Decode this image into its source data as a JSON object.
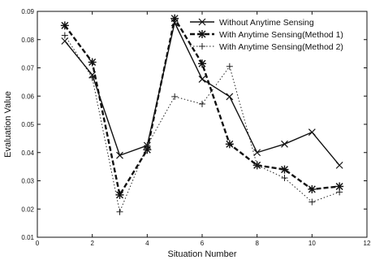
{
  "chart_data": {
    "type": "line",
    "title": "",
    "xlabel": "Situation Number",
    "ylabel": "Evaluation Value",
    "xlim": [
      0,
      12
    ],
    "ylim": [
      0.01,
      0.09
    ],
    "x_ticks": [
      0,
      2,
      4,
      6,
      8,
      10,
      12
    ],
    "y_ticks": [
      0.01,
      0.02,
      0.03,
      0.04,
      0.05,
      0.06,
      0.07,
      0.08,
      0.09
    ],
    "x_tick_labels": [
      "0",
      "2",
      "4",
      "6",
      "8",
      "10",
      "12"
    ],
    "y_tick_labels": [
      "0.01",
      "0.02",
      "0.03",
      "0.04",
      "0.05",
      "0.06",
      "0.07",
      "0.08",
      "0.09"
    ],
    "grid": false,
    "legend_position": "top-right",
    "x": [
      1,
      2,
      3,
      4,
      5,
      6,
      7,
      8,
      9,
      10,
      11
    ],
    "series": [
      {
        "name": "Without Anytime Sensing",
        "line_style": "solid",
        "marker": "x",
        "color": "#111111",
        "values": [
          0.0795,
          0.0675,
          0.039,
          0.0425,
          0.086,
          0.066,
          0.0598,
          0.04,
          0.043,
          0.0472,
          0.0355
        ]
      },
      {
        "name": "With Anytime Sensing(Method 1)",
        "line_style": "dashed",
        "marker": "asterisk",
        "color": "#111111",
        "values": [
          0.085,
          0.072,
          0.025,
          0.041,
          0.0875,
          0.0715,
          0.043,
          0.0355,
          0.034,
          0.027,
          0.028
        ]
      },
      {
        "name": "With Anytime Sensing(Method 2)",
        "line_style": "dotted",
        "marker": "plus",
        "color": "#222222",
        "values": [
          0.0815,
          0.0665,
          0.019,
          0.0425,
          0.0598,
          0.0572,
          0.0705,
          0.0355,
          0.031,
          0.0225,
          0.026
        ]
      }
    ]
  }
}
